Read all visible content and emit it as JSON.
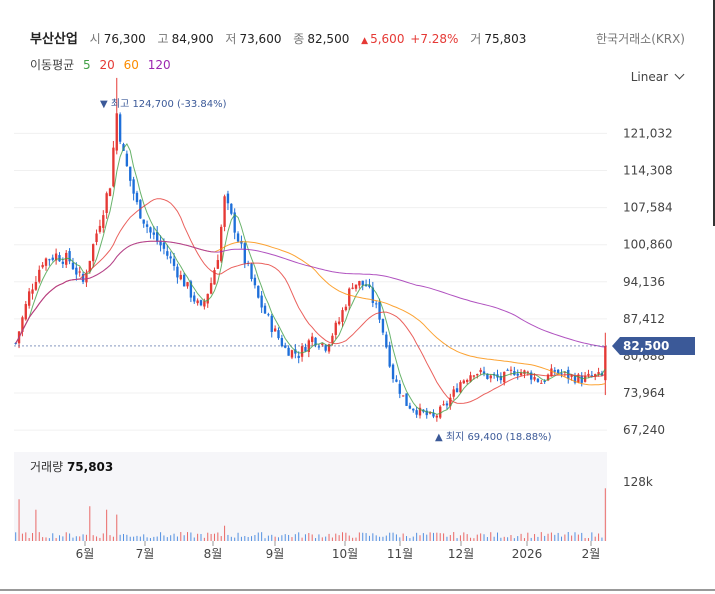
{
  "header": {
    "stock_name": "부산산업",
    "open_label": "시",
    "open_value": "76,300",
    "high_label": "고",
    "high_value": "84,900",
    "low_label": "저",
    "low_value": "73,600",
    "close_label": "종",
    "close_value": "82,500",
    "change_arrow": "▲",
    "change_value": "5,600",
    "change_pct": "+7.28%",
    "volume_label": "거",
    "volume_value": "75,803",
    "exchange": "한국거래소(KRX)"
  },
  "moving_average": {
    "label": "이동평균",
    "periods": [
      {
        "label": "5",
        "color": "#43a047"
      },
      {
        "label": "20",
        "color": "#e53935"
      },
      {
        "label": "60",
        "color": "#fb8c00"
      },
      {
        "label": "120",
        "color": "#9c27b0"
      }
    ]
  },
  "scale_button": {
    "label": "Linear",
    "icon": "chevron-down-icon"
  },
  "volume_panel": {
    "label": "거래량",
    "value": "75,803",
    "axis_label": "128k"
  },
  "colors": {
    "up": "#e53935",
    "down": "#1e6fd9",
    "current_price_tag": "#3b5998"
  },
  "chart_data": {
    "type": "candlestick",
    "price_axis_ticks": [
      "121,032",
      "114,308",
      "107,584",
      "100,860",
      "94,136",
      "87,412",
      "80,688",
      "73,964",
      "67,240"
    ],
    "price_axis_values": [
      121032,
      114308,
      107584,
      100860,
      94136,
      87412,
      80688,
      73964,
      67240
    ],
    "ylim": [
      64000,
      128000
    ],
    "x_tick_labels": [
      "6월",
      "7월",
      "8월",
      "9월",
      "10월",
      "11월",
      "12월",
      "2026",
      "2월"
    ],
    "current_price": {
      "label": "82,500",
      "value": 82500
    },
    "annotations": {
      "high": {
        "label": "최고 124,700 (-33.84%)",
        "value": 124700
      },
      "low": {
        "label": "최지 69,400 (18.88%)",
        "value": 69400
      }
    },
    "price_path": [
      [
        0,
        83000
      ],
      [
        4,
        92000
      ],
      [
        8,
        98000
      ],
      [
        12,
        99000
      ],
      [
        16,
        98000
      ],
      [
        20,
        94000
      ],
      [
        24,
        103000
      ],
      [
        28,
        112000
      ],
      [
        30,
        124700
      ],
      [
        32,
        117000
      ],
      [
        36,
        108000
      ],
      [
        40,
        103000
      ],
      [
        44,
        100000
      ],
      [
        48,
        96000
      ],
      [
        52,
        92000
      ],
      [
        55,
        89000
      ],
      [
        58,
        94000
      ],
      [
        60,
        99000
      ],
      [
        62,
        109000
      ],
      [
        65,
        104000
      ],
      [
        68,
        98000
      ],
      [
        72,
        91000
      ],
      [
        76,
        86000
      ],
      [
        80,
        82000
      ],
      [
        84,
        81000
      ],
      [
        88,
        84000
      ],
      [
        92,
        82500
      ],
      [
        96,
        87000
      ],
      [
        100,
        94000
      ],
      [
        104,
        93500
      ],
      [
        108,
        88000
      ],
      [
        112,
        77000
      ],
      [
        116,
        72000
      ],
      [
        120,
        70500
      ],
      [
        124,
        69400
      ],
      [
        128,
        72000
      ],
      [
        132,
        76000
      ],
      [
        136,
        78000
      ],
      [
        140,
        77000
      ],
      [
        144,
        76500
      ],
      [
        148,
        78000
      ],
      [
        152,
        77500
      ],
      [
        156,
        76000
      ],
      [
        160,
        78000
      ],
      [
        164,
        77000
      ],
      [
        168,
        76500
      ],
      [
        172,
        77000
      ],
      [
        174,
        76900
      ],
      [
        175,
        82500
      ]
    ],
    "volume_max": 128000,
    "volume_spikes": [
      {
        "index": 1,
        "value": 60000
      },
      {
        "index": 6,
        "value": 45000
      },
      {
        "index": 22,
        "value": 50000
      },
      {
        "index": 27,
        "value": 45000
      },
      {
        "index": 30,
        "value": 38000
      },
      {
        "index": 62,
        "value": 22000
      },
      {
        "index": 112,
        "value": 12000
      },
      {
        "index": 175,
        "value": 75803
      }
    ]
  }
}
